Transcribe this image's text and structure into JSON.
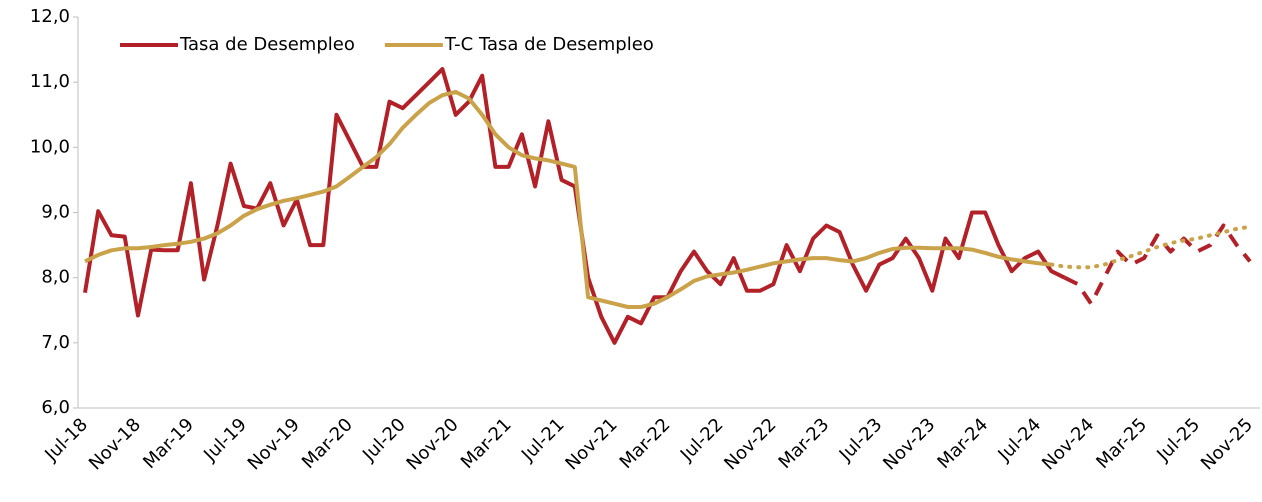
{
  "chart_data": {
    "type": "line",
    "categories": [
      "Jul-18",
      null,
      null,
      null,
      "Nov-18",
      null,
      null,
      null,
      "Mar-19",
      null,
      null,
      null,
      "Jul-19",
      null,
      null,
      null,
      "Nov-19",
      null,
      null,
      null,
      "Mar-20",
      null,
      null,
      null,
      "Jul-20",
      null,
      null,
      null,
      "Nov-20",
      null,
      null,
      null,
      "Mar-21",
      null,
      null,
      null,
      "Jul-21",
      null,
      null,
      null,
      "Nov-21",
      null,
      null,
      null,
      "Mar-22",
      null,
      null,
      null,
      "Jul-22",
      null,
      null,
      null,
      "Nov-22",
      null,
      null,
      null,
      "Mar-23",
      null,
      null,
      null,
      "Jul-23",
      null,
      null,
      null,
      "Nov-23",
      null,
      null,
      null,
      "Mar-24",
      null,
      null,
      null,
      "Jul-24",
      null,
      null,
      null,
      "Nov-24",
      null,
      null,
      null,
      "Mar-25",
      null,
      null,
      null,
      "Jul-25",
      null,
      null,
      null,
      "Nov-25"
    ],
    "series": [
      {
        "name": "Tasa de Desempleo",
        "color": "#b22028",
        "dashed_from": 74,
        "values": [
          7.77,
          9.02,
          8.65,
          8.63,
          7.42,
          8.43,
          8.42,
          8.42,
          9.45,
          7.97,
          8.8,
          9.75,
          9.1,
          9.06,
          9.45,
          8.8,
          9.2,
          8.5,
          8.5,
          10.5,
          10.1,
          9.7,
          9.7,
          10.7,
          10.6,
          10.8,
          11.0,
          11.2,
          10.5,
          10.7,
          11.1,
          9.7,
          9.7,
          10.2,
          9.4,
          10.4,
          9.5,
          9.4,
          8.0,
          7.4,
          7.0,
          7.4,
          7.3,
          7.7,
          7.7,
          8.1,
          8.4,
          8.1,
          7.9,
          8.3,
          7.8,
          7.8,
          7.9,
          8.5,
          8.1,
          8.6,
          8.8,
          8.7,
          8.2,
          7.8,
          8.2,
          8.3,
          8.6,
          8.3,
          7.8,
          8.6,
          8.3,
          9.0,
          9.0,
          8.5,
          8.1,
          8.3,
          8.4,
          8.1,
          8.0,
          7.9,
          7.6,
          8.0,
          8.4,
          8.2,
          8.3,
          8.65,
          8.4,
          8.6,
          8.4,
          8.5,
          8.8,
          8.5,
          8.25
        ]
      },
      {
        "name": "T-C Tasa de Desempleo",
        "color": "#c9a24a",
        "dashed_from": 73,
        "values": [
          8.25,
          8.35,
          8.42,
          8.45,
          8.45,
          8.47,
          8.5,
          8.52,
          8.55,
          8.6,
          8.68,
          8.8,
          8.95,
          9.05,
          9.12,
          9.18,
          9.22,
          9.27,
          9.32,
          9.4,
          9.55,
          9.7,
          9.85,
          10.05,
          10.3,
          10.5,
          10.68,
          10.8,
          10.85,
          10.75,
          10.5,
          10.2,
          10.0,
          9.88,
          9.83,
          9.8,
          9.75,
          9.7,
          7.7,
          7.65,
          7.6,
          7.55,
          7.55,
          7.6,
          7.7,
          7.82,
          7.95,
          8.02,
          8.05,
          8.08,
          8.12,
          8.17,
          8.22,
          8.25,
          8.28,
          8.3,
          8.3,
          8.27,
          8.25,
          8.3,
          8.38,
          8.44,
          8.46,
          8.46,
          8.45,
          8.45,
          8.45,
          8.43,
          8.38,
          8.32,
          8.28,
          8.25,
          8.22,
          8.2,
          8.17,
          8.16,
          8.16,
          8.2,
          8.27,
          8.33,
          8.4,
          8.47,
          8.53,
          8.57,
          8.6,
          8.65,
          8.7,
          8.75,
          8.78
        ]
      }
    ],
    "ylim": [
      6,
      12
    ],
    "yticks": [
      {
        "value": 6,
        "label": "6,0"
      },
      {
        "value": 7,
        "label": "7,0"
      },
      {
        "value": 8,
        "label": "8,0"
      },
      {
        "value": 9,
        "label": "9,0"
      },
      {
        "value": 10,
        "label": "10,0"
      },
      {
        "value": 11,
        "label": "11,0"
      },
      {
        "value": 12,
        "label": "12,0"
      }
    ],
    "grid": false,
    "legend": "top-left"
  }
}
